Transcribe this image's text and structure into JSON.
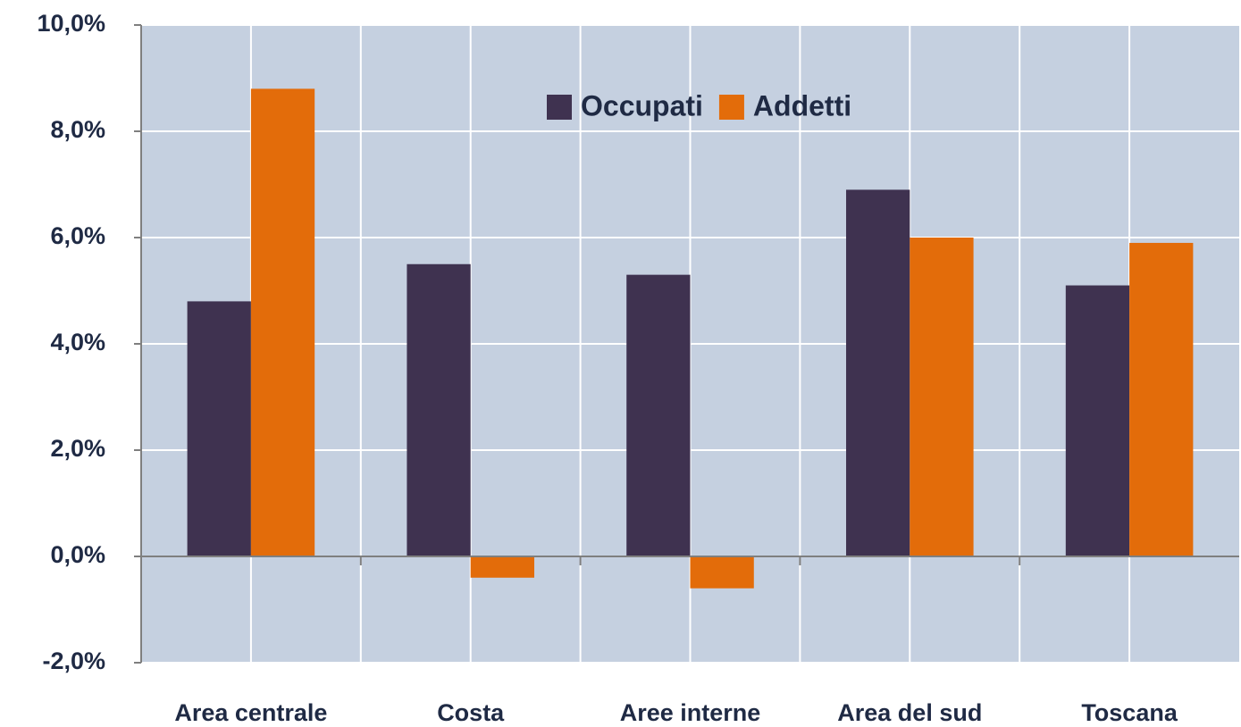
{
  "chart_data": {
    "type": "bar",
    "categories": [
      "Area centrale",
      "Costa",
      "Aree interne",
      "Area del sud",
      "Toscana"
    ],
    "series": [
      {
        "name": "Occupati",
        "color": "#3f3250",
        "values": [
          4.8,
          5.5,
          5.3,
          6.9,
          5.1
        ]
      },
      {
        "name": "Addetti",
        "color": "#e36c0a",
        "values": [
          8.8,
          -0.4,
          -0.6,
          6.0,
          5.9
        ]
      }
    ],
    "ylim": [
      -2,
      10
    ],
    "yticks": [
      {
        "value": -2,
        "label": "-2,0%"
      },
      {
        "value": 0,
        "label": "0,0%"
      },
      {
        "value": 2,
        "label": "2,0%"
      },
      {
        "value": 4,
        "label": "4,0%"
      },
      {
        "value": 6,
        "label": "6,0%"
      },
      {
        "value": 8,
        "label": "8,0%"
      },
      {
        "value": 10,
        "label": "10,0%"
      }
    ],
    "grid": true
  }
}
